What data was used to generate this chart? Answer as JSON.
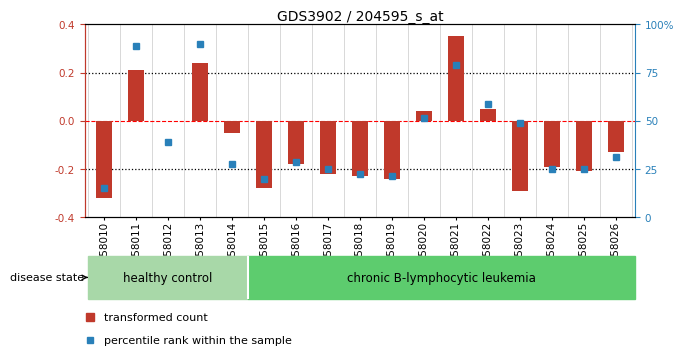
{
  "title": "GDS3902 / 204595_s_at",
  "samples": [
    "GSM658010",
    "GSM658011",
    "GSM658012",
    "GSM658013",
    "GSM658014",
    "GSM658015",
    "GSM658016",
    "GSM658017",
    "GSM658018",
    "GSM658019",
    "GSM658020",
    "GSM658021",
    "GSM658022",
    "GSM658023",
    "GSM658024",
    "GSM658025",
    "GSM658026"
  ],
  "red_bars": [
    -0.32,
    0.21,
    0.0,
    0.24,
    -0.05,
    -0.28,
    -0.18,
    -0.22,
    -0.23,
    -0.24,
    0.04,
    0.35,
    0.05,
    -0.29,
    -0.19,
    -0.21,
    -0.13
  ],
  "blue_dots": [
    -0.28,
    0.31,
    -0.09,
    0.32,
    -0.18,
    -0.24,
    -0.17,
    -0.2,
    -0.22,
    -0.23,
    0.01,
    0.23,
    0.07,
    -0.01,
    -0.2,
    -0.2,
    -0.15
  ],
  "ylim": [
    -0.4,
    0.4
  ],
  "yticks_left": [
    -0.4,
    -0.2,
    0.0,
    0.2,
    0.4
  ],
  "yticks_right_vals": [
    0,
    25,
    50,
    75,
    100
  ],
  "right_ylabels": [
    "0",
    "25",
    "50",
    "75",
    "100%"
  ],
  "healthy_count": 5,
  "group_labels": [
    "healthy control",
    "chronic B-lymphocytic leukemia"
  ],
  "bar_color": "#c0392b",
  "dot_color": "#2980b9",
  "bar_width": 0.5,
  "healthy_color": "#a8d8a8",
  "leukemia_color": "#5dcc6e",
  "disease_label": "disease state",
  "legend1": "transformed count",
  "legend2": "percentile rank within the sample",
  "title_fontsize": 10,
  "tick_fontsize": 7.5,
  "axis_fontsize": 8
}
